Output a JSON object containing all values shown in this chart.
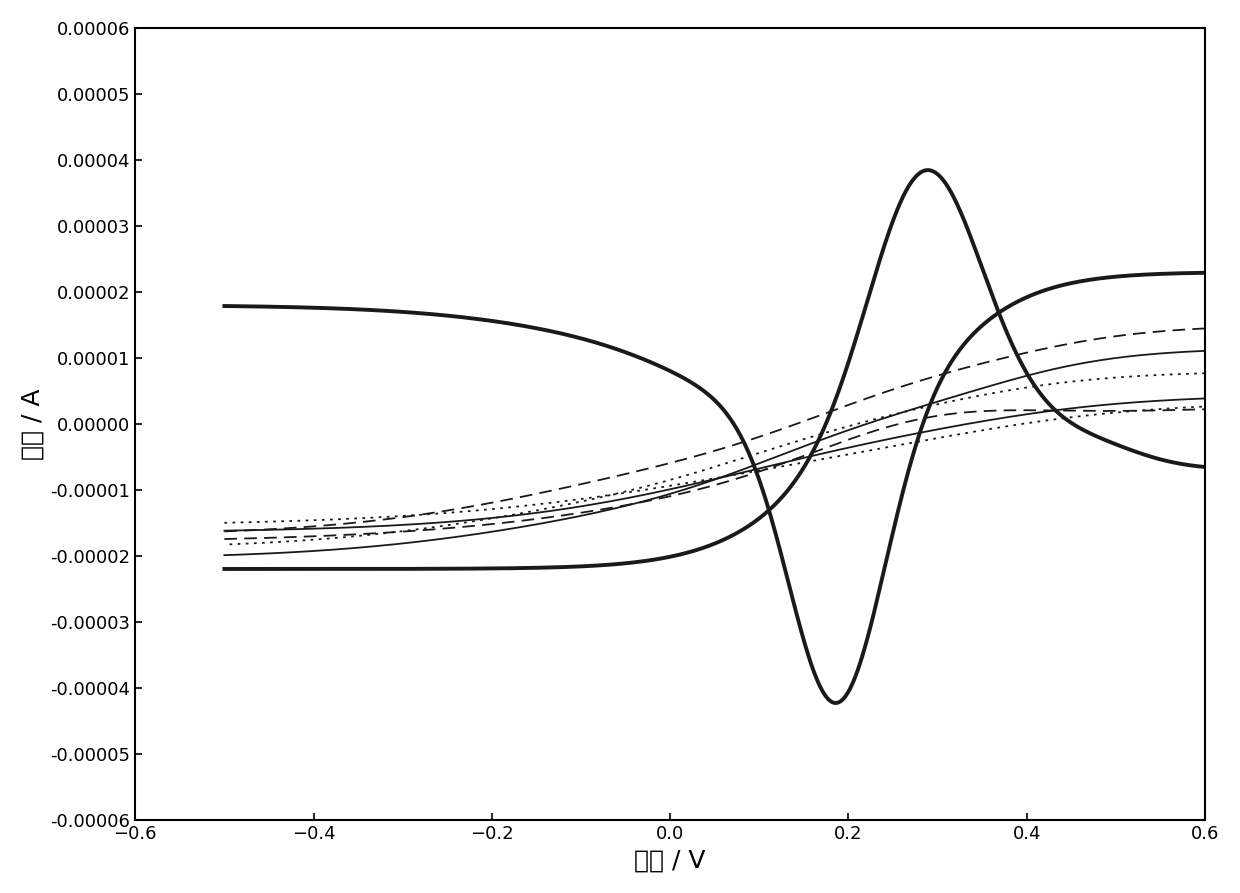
{
  "xlabel": "电势 / V",
  "ylabel": "电流 / A",
  "xlim": [
    -0.6,
    0.6
  ],
  "ylim": [
    -6e-05,
    6e-05
  ],
  "xticks": [
    -0.6,
    -0.4,
    -0.2,
    0.0,
    0.2,
    0.4,
    0.6
  ],
  "yticks": [
    -6e-05,
    -5e-05,
    -4e-05,
    -3e-05,
    -2e-05,
    -1e-05,
    0.0,
    1e-05,
    2e-05,
    3e-05,
    4e-05,
    5e-05,
    6e-05
  ],
  "background_color": "#ffffff",
  "line_color": "#1a1a1a",
  "thick_linewidth": 2.8,
  "thin_linewidth": 1.3,
  "xlabel_fontsize": 18,
  "ylabel_fontsize": 18,
  "tick_labelsize": 13
}
